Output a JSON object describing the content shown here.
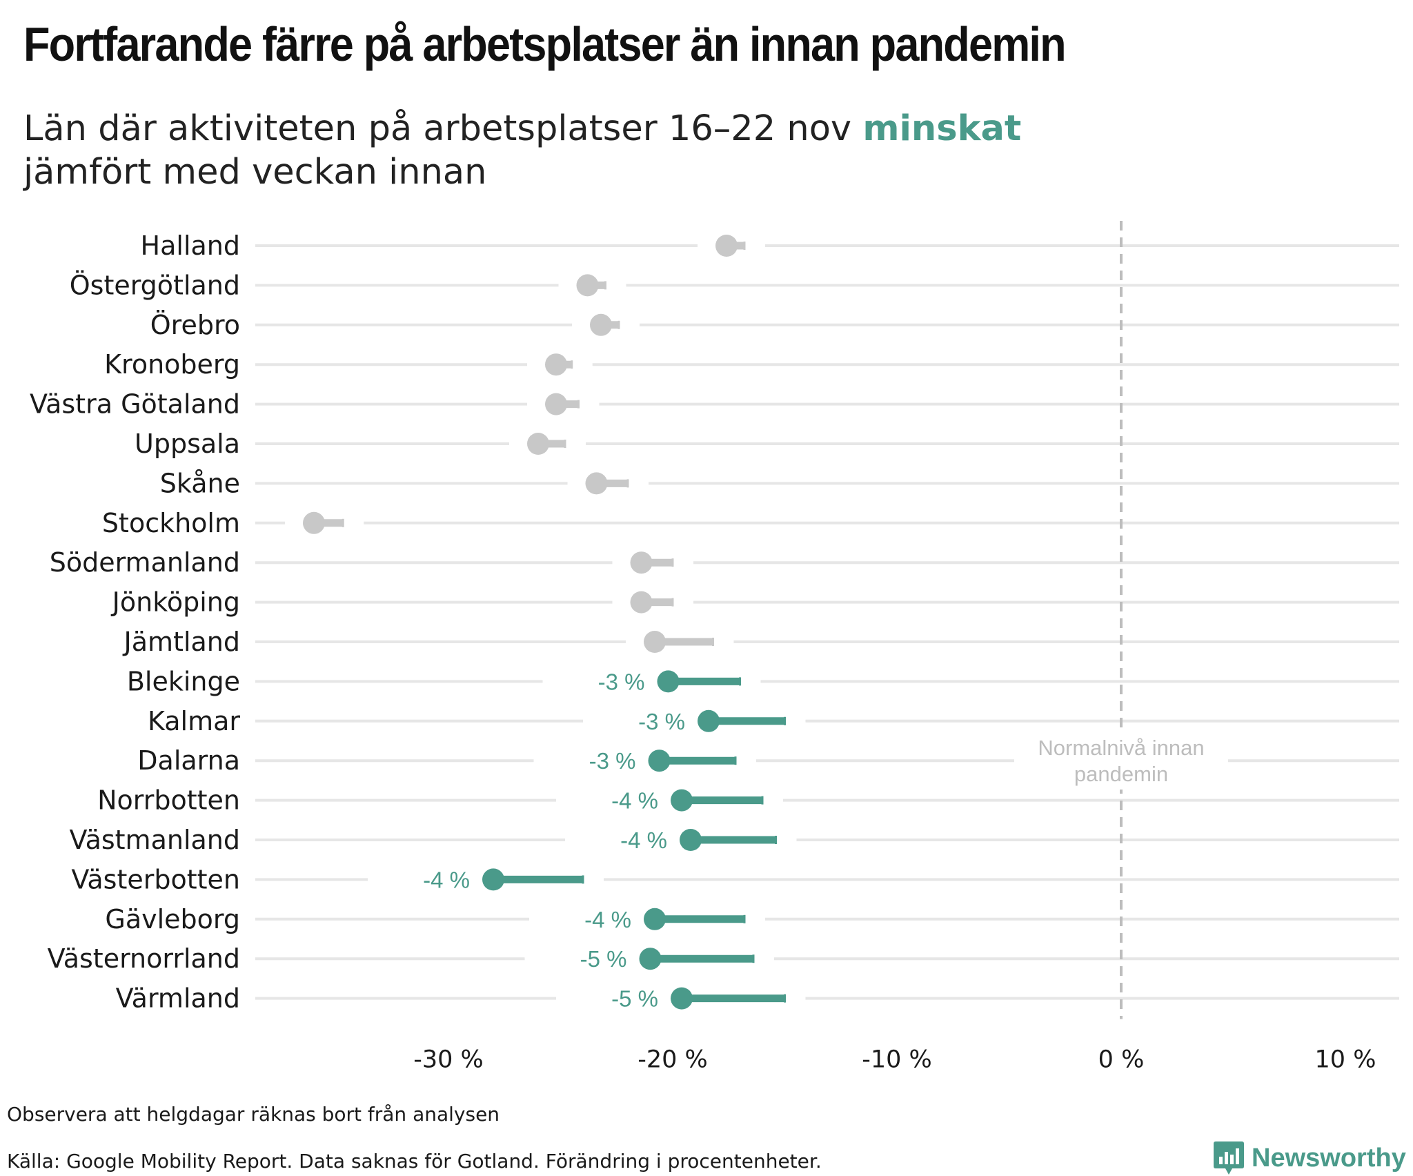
{
  "title": "Fortfarande färre på arbetsplatser än innan pandemin",
  "subtitle": {
    "part1": "Län där aktiviteten på arbetsplatser 16–22 nov ",
    "highlight": "minskat",
    "part2": "jämfört med veckan innan"
  },
  "colors": {
    "accent": "#4a9a8a",
    "inactive": "#c8c8c8",
    "gridline": "#e6e6e6",
    "reference": "#bdbdbd"
  },
  "chart_data": {
    "type": "dumbbell",
    "xlim": [
      -38,
      12
    ],
    "x_ticks": [
      -30,
      -20,
      -10,
      0,
      10
    ],
    "x_tick_labels": [
      "-30 %",
      "-20 %",
      "-10 %",
      "0 %",
      "10 %"
    ],
    "reference_line": {
      "x": 0,
      "label_line1": "Normalnivå innan",
      "label_line2": "pandemin"
    },
    "grid": true,
    "rows": [
      {
        "region": "Halland",
        "current": -17.6,
        "previous": -16.8,
        "decreased": false,
        "label": ""
      },
      {
        "region": "Östergötland",
        "current": -23.8,
        "previous": -23.0,
        "decreased": false,
        "label": ""
      },
      {
        "region": "Örebro",
        "current": -23.2,
        "previous": -22.4,
        "decreased": false,
        "label": ""
      },
      {
        "region": "Kronoberg",
        "current": -25.2,
        "previous": -24.5,
        "decreased": false,
        "label": ""
      },
      {
        "region": "Västra Götaland",
        "current": -25.2,
        "previous": -24.2,
        "decreased": false,
        "label": ""
      },
      {
        "region": "Uppsala",
        "current": -26.0,
        "previous": -24.8,
        "decreased": false,
        "label": ""
      },
      {
        "region": "Skåne",
        "current": -23.4,
        "previous": -22.0,
        "decreased": false,
        "label": ""
      },
      {
        "region": "Stockholm",
        "current": -36.0,
        "previous": -34.7,
        "decreased": false,
        "label": ""
      },
      {
        "region": "Södermanland",
        "current": -21.4,
        "previous": -20.0,
        "decreased": false,
        "label": ""
      },
      {
        "region": "Jönköping",
        "current": -21.4,
        "previous": -20.0,
        "decreased": false,
        "label": ""
      },
      {
        "region": "Jämtland",
        "current": -20.8,
        "previous": -18.2,
        "decreased": false,
        "label": ""
      },
      {
        "region": "Blekinge",
        "current": -20.2,
        "previous": -17.0,
        "decreased": true,
        "label": "-3 %"
      },
      {
        "region": "Kalmar",
        "current": -18.4,
        "previous": -15.0,
        "decreased": true,
        "label": "-3 %"
      },
      {
        "region": "Dalarna",
        "current": -20.6,
        "previous": -17.2,
        "decreased": true,
        "label": "-3 %"
      },
      {
        "region": "Norrbotten",
        "current": -19.6,
        "previous": -16.0,
        "decreased": true,
        "label": "-4 %"
      },
      {
        "region": "Västmanland",
        "current": -19.2,
        "previous": -15.4,
        "decreased": true,
        "label": "-4 %"
      },
      {
        "region": "Västerbotten",
        "current": -28.0,
        "previous": -24.0,
        "decreased": true,
        "label": "-4 %"
      },
      {
        "region": "Gävleborg",
        "current": -20.8,
        "previous": -16.8,
        "decreased": true,
        "label": "-4 %"
      },
      {
        "region": "Västernorrland",
        "current": -21.0,
        "previous": -16.4,
        "decreased": true,
        "label": "-5 %"
      },
      {
        "region": "Värmland",
        "current": -19.6,
        "previous": -15.0,
        "decreased": true,
        "label": "-5 %"
      }
    ]
  },
  "notes": {
    "observe": "Observera att helgdagar räknas bort från analysen",
    "source": "Källa: Google Mobility Report. Data saknas för Gotland. Förändring i procentenheter."
  },
  "brand": {
    "name": "Newsworthy",
    "icon": "newsworthy-logo-icon",
    "color": "#4a9a8a"
  }
}
